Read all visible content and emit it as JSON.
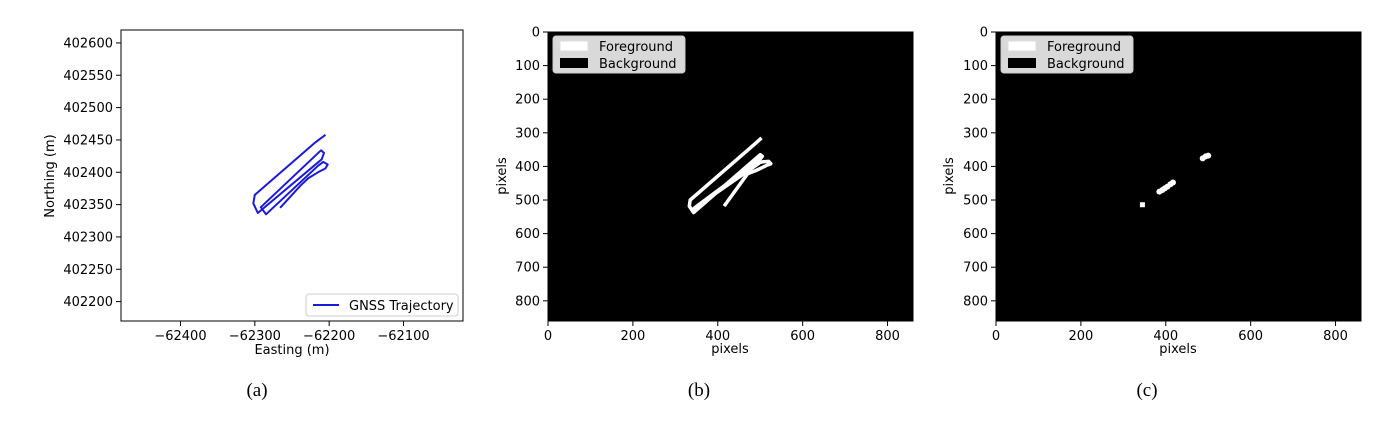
{
  "panels": [
    {
      "caption": "(a)",
      "xlabel": "Easting (m)",
      "ylabel": "Northing (m)",
      "xlim": [
        -62480,
        -62020
      ],
      "ylim": [
        402170,
        402620
      ],
      "xticks": [
        -62400,
        -62300,
        -62200,
        -62100
      ],
      "yticks": [
        402200,
        402250,
        402300,
        402350,
        402400,
        402450,
        402500,
        402550,
        402600
      ],
      "legend": [
        "GNSS Trajectory"
      ]
    },
    {
      "caption": "(b)",
      "xlabel": "pixels",
      "ylabel": "pixels",
      "xlim": [
        0,
        860
      ],
      "ylim": [
        860,
        0
      ],
      "xticks": [
        0,
        200,
        400,
        600,
        800
      ],
      "yticks": [
        0,
        100,
        200,
        300,
        400,
        500,
        600,
        700,
        800
      ],
      "legend": [
        "Foreground",
        "Background"
      ]
    },
    {
      "caption": "(c)",
      "xlabel": "pixels",
      "ylabel": "pixels",
      "xlim": [
        0,
        860
      ],
      "ylim": [
        860,
        0
      ],
      "xticks": [
        0,
        200,
        400,
        600,
        800
      ],
      "yticks": [
        0,
        100,
        200,
        300,
        400,
        500,
        600,
        700,
        800
      ],
      "legend": [
        "Foreground",
        "Background"
      ]
    }
  ],
  "chart_data": [
    {
      "type": "line",
      "xlabel": "Easting (m)",
      "ylabel": "Northing (m)",
      "xlim": [
        -62480,
        -62020
      ],
      "ylim": [
        402170,
        402620
      ],
      "grid": false,
      "legend_position": "bottom-right",
      "color": "#1a1adb",
      "series": [
        {
          "name": "GNSS Trajectory",
          "x": [
            -62205,
            -62220,
            -62300,
            -62302,
            -62296,
            -62210,
            -62207,
            -62211,
            -62292,
            -62285,
            -62215,
            -62208,
            -62202,
            -62205,
            -62215,
            -62228,
            -62238,
            -62266
          ],
          "y": [
            402458,
            402445,
            402365,
            402352,
            402337,
            402420,
            402430,
            402434,
            402346,
            402335,
            402410,
            402416,
            402412,
            402406,
            402400,
            402391,
            402380,
            402345
          ]
        }
      ]
    },
    {
      "type": "scatter",
      "xlabel": "pixels",
      "ylabel": "pixels",
      "xlim": [
        0,
        860
      ],
      "ylim": [
        860,
        0
      ],
      "background": "#000000",
      "legend_position": "top-left",
      "series": [
        {
          "name": "Foreground",
          "x": [
            503,
            490,
            335,
            333,
            343,
            500,
            505,
            500,
            350,
            345,
            500,
            507,
            520,
            525,
            515,
            490,
            470,
            415
          ],
          "y": [
            315,
            330,
            500,
            518,
            537,
            365,
            370,
            378,
            519,
            524,
            388,
            386,
            385,
            392,
            397,
            412,
            422,
            518
          ]
        }
      ]
    },
    {
      "type": "scatter",
      "xlabel": "pixels",
      "ylabel": "pixels",
      "xlim": [
        0,
        860
      ],
      "ylim": [
        860,
        0
      ],
      "background": "#000000",
      "legend_position": "top-left",
      "series": [
        {
          "name": "Foreground",
          "x": [
            345,
            385,
            392,
            398,
            404,
            411,
            417,
            487,
            494,
            500
          ],
          "y": [
            514,
            475,
            470,
            465,
            460,
            453,
            448,
            376,
            370,
            368
          ]
        }
      ]
    }
  ]
}
